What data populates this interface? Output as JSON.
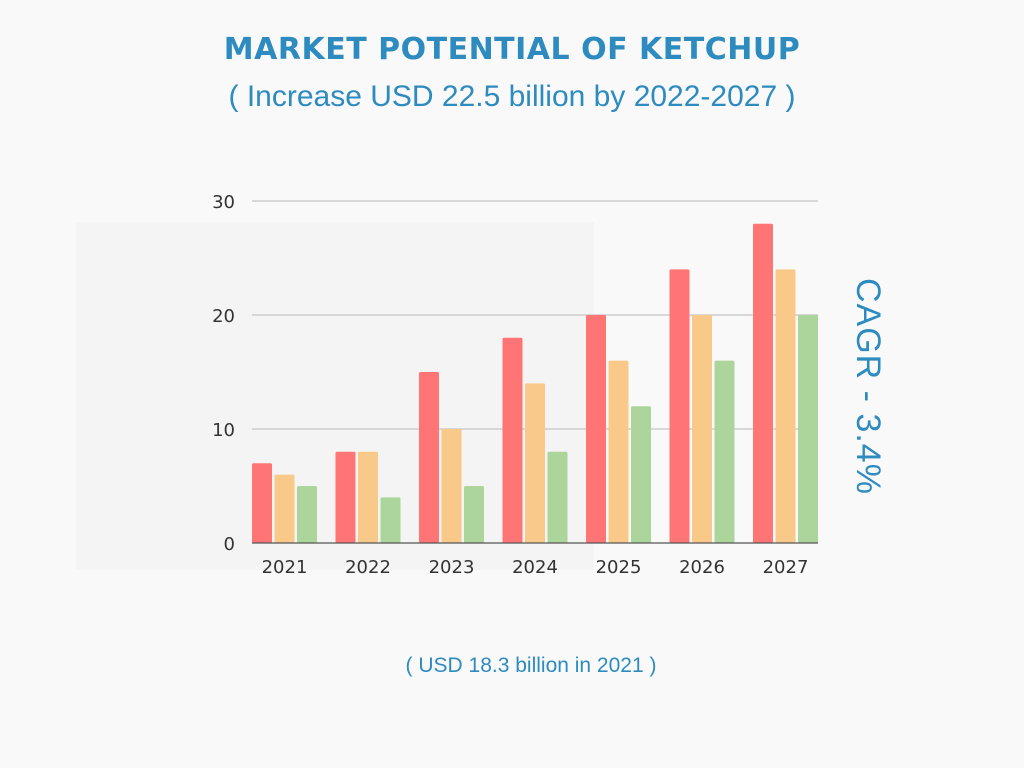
{
  "header": {
    "title": "MARKET POTENTIAL OF KETCHUP",
    "subtitle": "( Increase USD 22.5 billion by 2022-2027 )"
  },
  "side_note": "CAGR - 3.4%",
  "footnote": "( USD 18.3  billion in  2021 )",
  "chart_data": {
    "type": "bar",
    "title": "MARKET POTENTIAL OF KETCHUP",
    "subtitle": "( Increase USD 22.5 billion by 2022-2027 )",
    "xlabel": "",
    "ylabel": "",
    "categories": [
      "2021",
      "2022",
      "2023",
      "2024",
      "2025",
      "2026",
      "2027"
    ],
    "series": [
      {
        "name": "Series 1",
        "color": "#ff7474",
        "values": [
          7,
          8,
          15,
          18,
          20,
          24,
          28
        ]
      },
      {
        "name": "Series 2",
        "color": "#f9c98a",
        "values": [
          6,
          8,
          10,
          14,
          16,
          20,
          24
        ]
      },
      {
        "name": "Series 3",
        "color": "#acd59c",
        "values": [
          5,
          4,
          5,
          8,
          12,
          16,
          20
        ]
      }
    ],
    "ylim": [
      0,
      30
    ],
    "yticks": [
      0,
      10,
      20,
      30
    ],
    "grid": true,
    "legend": "none",
    "annotations": [
      "CAGR - 3.4%",
      "( USD 18.3  billion in  2021 )"
    ]
  }
}
